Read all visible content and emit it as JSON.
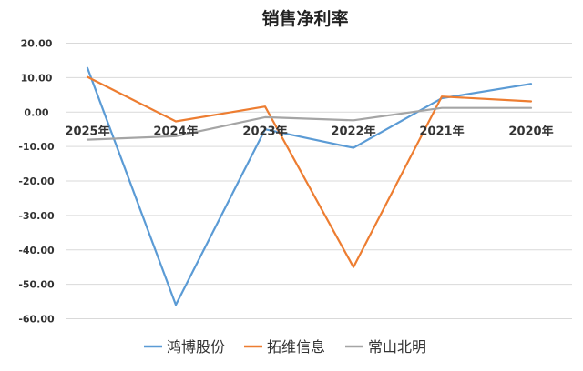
{
  "chart_data": {
    "type": "line",
    "title": "销售净利率",
    "xlabel": "",
    "ylabel": "",
    "categories": [
      "2025年",
      "2024年",
      "2023年",
      "2022年",
      "2021年",
      "2020年"
    ],
    "ylim": [
      -60,
      20
    ],
    "yticks": [
      "20.00",
      "10.00",
      "0.00",
      "-10.00",
      "-20.00",
      "-30.00",
      "-40.00",
      "-50.00",
      "-60.00"
    ],
    "grid": true,
    "legend_position": "bottom",
    "series": [
      {
        "name": "鸿博股份",
        "color": "#5B9BD5",
        "values": [
          12.8,
          -56.0,
          -5.0,
          -10.4,
          4.0,
          8.2
        ]
      },
      {
        "name": "拓维信息",
        "color": "#ED7D31",
        "values": [
          10.2,
          -2.7,
          1.6,
          -45.0,
          4.5,
          3.1
        ]
      },
      {
        "name": "常山北明",
        "color": "#A5A5A5",
        "values": [
          -8.0,
          -7.0,
          -1.5,
          -2.4,
          1.2,
          1.2
        ]
      }
    ]
  }
}
